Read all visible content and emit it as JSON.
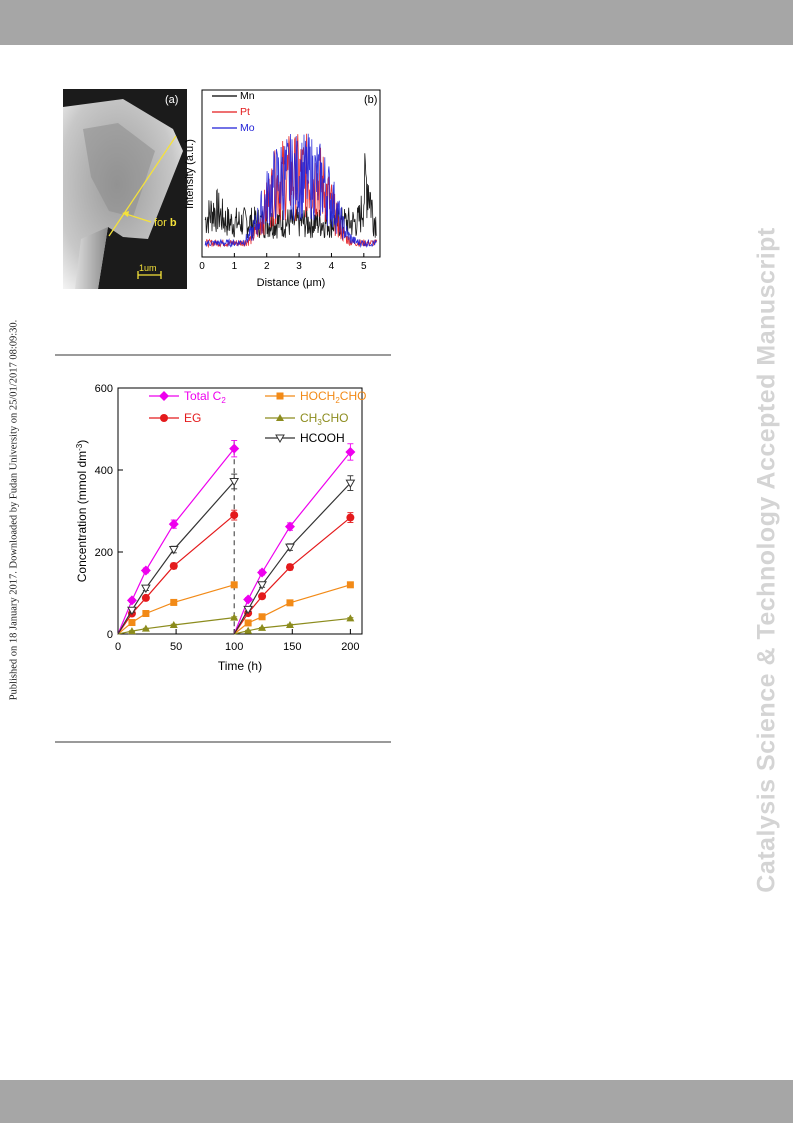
{
  "side_note": "Published on 18 January 2017. Downloaded by Fudan University on 25/01/2017 08:09:30.",
  "watermark": "Catalysis Science & Technology Accepted Manuscript",
  "colors": {
    "band": "#a6a6a6",
    "mn": "#000000",
    "pt": "#e31a1c",
    "mo": "#1f1fd6",
    "total": "#ee00ee",
    "eg": "#e41a1c",
    "glycolaldehyde": "#f28a17",
    "acetaldehyde": "#8c8c1e",
    "hcooh": "#333333",
    "scale": "#f5e23a"
  },
  "sem": {
    "panel_label": "(a)",
    "arrow_label": "for",
    "arrow_label_bold": "b",
    "scale_label": "1um"
  },
  "chart_data": [
    {
      "type": "line",
      "panel_label": "(b)",
      "title": "",
      "xlabel": "Distance (μm)",
      "ylabel": "Intensity (a.u.)",
      "xlim": [
        0,
        5.5
      ],
      "xticks": [
        0,
        1,
        2,
        3,
        4,
        5
      ],
      "yticks": [],
      "legend_position": "top-left",
      "series": [
        {
          "name": "Mn",
          "color": "#000000"
        },
        {
          "name": "Pt",
          "color": "#e31a1c"
        },
        {
          "name": "Mo",
          "color": "#1f1fd6"
        }
      ]
    },
    {
      "type": "line",
      "title": "",
      "xlabel": "Time (h)",
      "ylabel": "Concentration (mmol dm",
      "ylabel_sup": "-3",
      "ylabel_tail": ")",
      "xlim": [
        0,
        210
      ],
      "ylim": [
        0,
        600
      ],
      "xticks": [
        0,
        50,
        100,
        150,
        200
      ],
      "yticks": [
        0,
        200,
        400,
        600
      ],
      "legend_position": "top",
      "series": [
        {
          "name": "Total C",
          "name_sub": "2",
          "color": "#ee00ee",
          "marker": "diamond",
          "segments": [
            {
              "x": [
                0,
                12,
                24,
                48,
                100
              ],
              "y": [
                0,
                82,
                155,
                268,
                452
              ],
              "err": [
                0,
                5,
                6,
                10,
                20
              ]
            },
            {
              "x": [
                100,
                112,
                124,
                148,
                200
              ],
              "y": [
                0,
                84,
                150,
                262,
                444
              ],
              "err": [
                0,
                5,
                6,
                9,
                20
              ]
            }
          ]
        },
        {
          "name": "EG",
          "color": "#e41a1c",
          "marker": "circle",
          "segments": [
            {
              "x": [
                0,
                12,
                24,
                48,
                100
              ],
              "y": [
                0,
                50,
                88,
                166,
                290
              ],
              "err": [
                0,
                4,
                5,
                7,
                12
              ]
            },
            {
              "x": [
                100,
                112,
                124,
                148,
                200
              ],
              "y": [
                0,
                51,
                92,
                163,
                284
              ],
              "err": [
                0,
                4,
                5,
                7,
                12
              ]
            }
          ]
        },
        {
          "name": "HOCH",
          "name_sub": "2",
          "name_tail": "CHO",
          "color": "#f28a17",
          "marker": "square",
          "segments": [
            {
              "x": [
                0,
                12,
                24,
                48,
                100
              ],
              "y": [
                0,
                28,
                50,
                77,
                120
              ],
              "err": [
                0,
                2,
                3,
                3,
                4
              ]
            },
            {
              "x": [
                100,
                112,
                124,
                148,
                200
              ],
              "y": [
                0,
                27,
                42,
                76,
                120
              ],
              "err": [
                0,
                2,
                3,
                3,
                4
              ]
            }
          ]
        },
        {
          "name": "CH",
          "name_sub": "3",
          "name_tail": "CHO",
          "color": "#8c8c1e",
          "marker": "triangle",
          "segments": [
            {
              "x": [
                0,
                12,
                24,
                48,
                100
              ],
              "y": [
                0,
                7,
                13,
                22,
                40
              ],
              "err": [
                0,
                1,
                1,
                2,
                2
              ]
            },
            {
              "x": [
                100,
                112,
                124,
                148,
                200
              ],
              "y": [
                0,
                8,
                15,
                22,
                38
              ],
              "err": [
                0,
                1,
                1,
                2,
                2
              ]
            }
          ]
        },
        {
          "name": "HCOOH",
          "color": "#333333",
          "marker": "triangle-down-open",
          "segments": [
            {
              "x": [
                0,
                12,
                24,
                48,
                100
              ],
              "y": [
                0,
                58,
                112,
                206,
                372
              ],
              "err": [
                0,
                5,
                6,
                8,
                18
              ]
            },
            {
              "x": [
                100,
                112,
                124,
                148,
                200
              ],
              "y": [
                0,
                60,
                120,
                212,
                368
              ],
              "err": [
                0,
                5,
                6,
                8,
                18
              ]
            }
          ]
        }
      ],
      "annotation": {
        "type": "dashed-vertical-line",
        "x": 100
      }
    }
  ]
}
